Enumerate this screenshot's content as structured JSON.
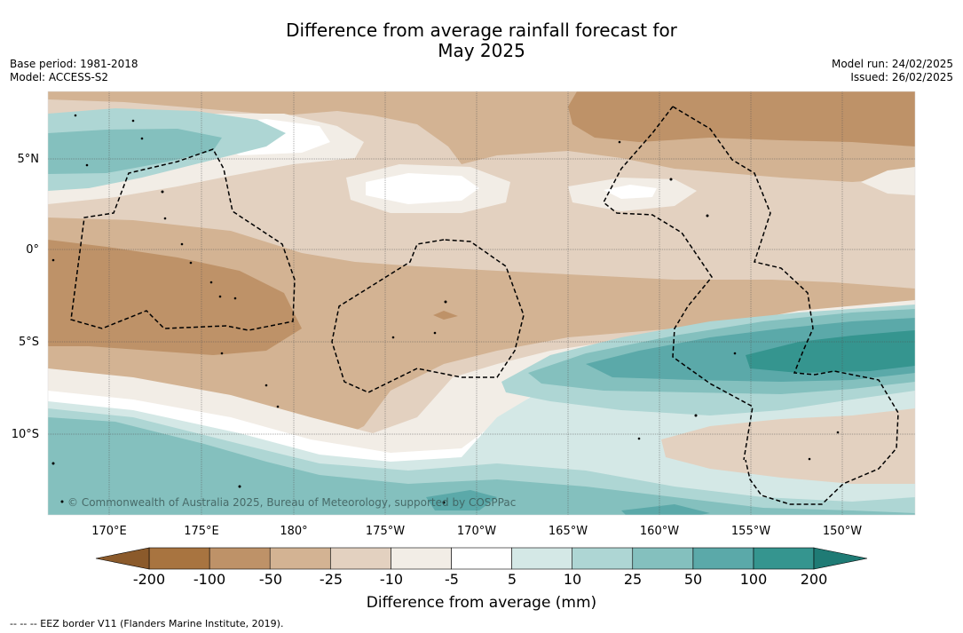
{
  "header": {
    "title_line1": "Difference from average rainfall forecast for",
    "title_line2": "May 2025",
    "base_period": "Base period: 1981-2018",
    "model": "Model: ACCESS-S2",
    "model_run": "Model run: 24/02/2025",
    "issued": "Issued: 26/02/2025"
  },
  "map": {
    "lat_labels": [
      "5°N",
      "0°",
      "5°S",
      "10°S"
    ],
    "lon_labels": [
      "170°E",
      "175°E",
      "180°",
      "175°W",
      "170°W",
      "165°W",
      "160°W",
      "155°W",
      "150°W"
    ],
    "copyright": "© Commonwealth of Australia 2025, Bureau of Meteorology, supported by COSPPac"
  },
  "colorbar": {
    "ticks": [
      "-200",
      "-100",
      "-50",
      "-25",
      "-10",
      "-5",
      "5",
      "10",
      "25",
      "50",
      "100",
      "200"
    ],
    "colors": [
      "#a87440",
      "#be9268",
      "#d3b393",
      "#e3d1c0",
      "#f2ede6",
      "#ffffff",
      "#d4e8e6",
      "#aed6d4",
      "#84c0be",
      "#5ba9a9",
      "#35958f"
    ],
    "under_color": "#8b5a2b",
    "over_color": "#1f7b75",
    "title": "Difference from average (mm)"
  },
  "footnote": "--  --  -- EEZ border V11 (Flanders Marine Institute, 2019)."
}
